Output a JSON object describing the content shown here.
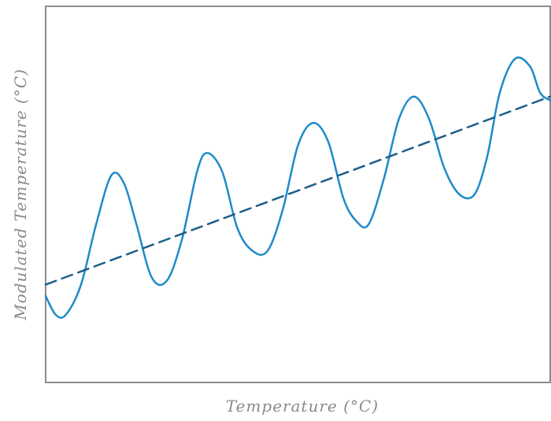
{
  "chart_data": {
    "type": "line",
    "title": "",
    "xlabel": "Temperature (°C)",
    "ylabel": "Modulated Temperature (°C)",
    "grid": false,
    "legend": "none",
    "x_ticks": [],
    "y_ticks": [],
    "xlim": [
      0,
      10
    ],
    "ylim": [
      0,
      10
    ],
    "series": [
      {
        "style": "solid",
        "color": "#1f8ac9",
        "x": [
          0,
          0.2,
          0.4,
          0.7,
          1.0,
          1.3,
          1.55,
          1.8,
          2.1,
          2.4,
          2.7,
          3.0,
          3.2,
          3.5,
          3.8,
          4.1,
          4.4,
          4.7,
          5.0,
          5.3,
          5.6,
          5.9,
          6.15,
          6.4,
          6.7,
          7.0,
          7.3,
          7.6,
          7.9,
          8.2,
          8.5,
          8.75,
          9.0,
          9.3,
          9.6,
          9.8,
          10.0
        ],
        "y": [
          2.3,
          1.8,
          1.8,
          2.6,
          4.2,
          5.5,
          5.3,
          4.2,
          2.8,
          2.7,
          3.8,
          5.6,
          6.1,
          5.6,
          4.1,
          3.5,
          3.5,
          4.6,
          6.3,
          6.9,
          6.4,
          4.9,
          4.3,
          4.2,
          5.4,
          7.0,
          7.6,
          7.0,
          5.7,
          5.0,
          5.0,
          6.0,
          7.7,
          8.6,
          8.4,
          7.7,
          7.5
        ]
      },
      {
        "style": "dashed",
        "color": "#1e5f8a",
        "x": [
          0,
          10
        ],
        "y": [
          2.6,
          7.6
        ]
      }
    ]
  }
}
